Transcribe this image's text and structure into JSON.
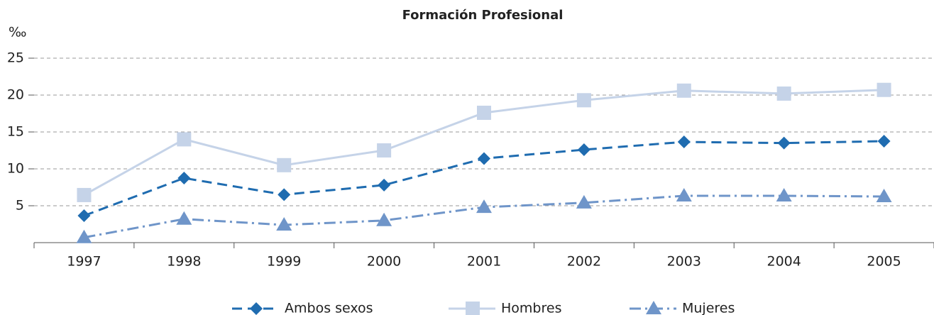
{
  "chart_data": {
    "type": "line",
    "title": "Formación Profesional",
    "y_label": "‰",
    "categories": [
      "1997",
      "1998",
      "1999",
      "2000",
      "2001",
      "2002",
      "2003",
      "2004",
      "2005"
    ],
    "series": [
      {
        "name": "Ambos sexos",
        "color": "#1f6cb0",
        "line_style": "dashed",
        "marker": "diamond",
        "values": [
          3.65,
          8.75,
          6.5,
          7.8,
          11.4,
          12.6,
          13.65,
          13.5,
          13.75
        ]
      },
      {
        "name": "Hombres",
        "color": "#c5d3e8",
        "line_style": "solid",
        "marker": "square",
        "values": [
          6.45,
          14.0,
          10.5,
          12.5,
          17.6,
          19.3,
          20.6,
          20.2,
          20.7
        ]
      },
      {
        "name": "Mujeres",
        "color": "#6f95c9",
        "line_style": "dashdot",
        "marker": "triangle",
        "values": [
          0.7,
          3.2,
          2.4,
          3.0,
          4.8,
          5.4,
          6.35,
          6.35,
          6.25
        ]
      }
    ],
    "ylim": [
      0,
      25
    ],
    "yticks": [
      5,
      10,
      15,
      20,
      25
    ],
    "grid": true,
    "legend": "bottom"
  }
}
